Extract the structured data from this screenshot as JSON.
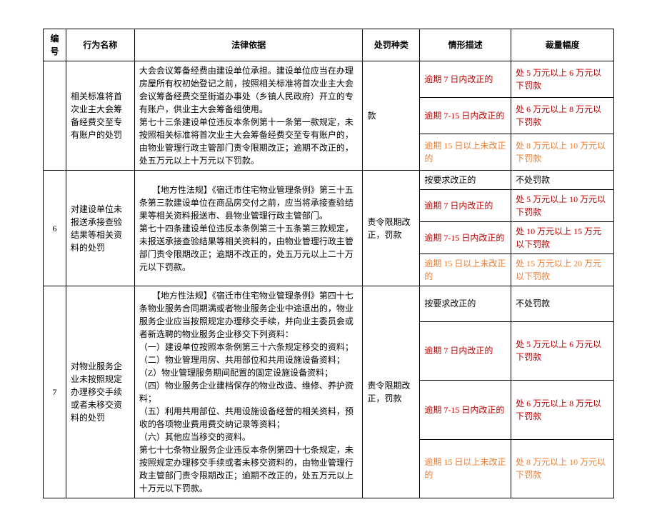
{
  "headers": {
    "num": "编号",
    "behavior": "行为名称",
    "legal": "法律依据",
    "penalty_type": "处罚种类",
    "situation": "情形描述",
    "range": "裁量幅度"
  },
  "rows": [
    {
      "num": "",
      "behavior": "相关标准将首次业主大会筹备经费交至专有账户的处罚",
      "legal": "大会会议筹备经费由建设单位承担。建设单位应当在办理房屋所有权初始登记之前，按照相关标准将首次业主大会会议筹备经费交至街道办事处（乡镇人民政府）开立的专有账户，供业主大会筹备组使用。\n第七十三条建设单位违反本条例第十一条第一款规定，未按照相关标准将首次业主大会筹备经费交至专有账户的，由物业管理行政主管部门责令限期改正；逾期不改正的，处五万元以上十万元以下罚款。",
      "penalty_type": "款",
      "situations": [
        {
          "desc": "逾期 7 日内改正的",
          "range": "处 5 万元以上 6 万元以下罚款",
          "style": "red"
        },
        {
          "desc": "逾期 7-15 日内改正的",
          "range": "处 6 万元以上 8 万元以下罚款",
          "style": "red"
        },
        {
          "desc": "逾期 15 日以上未改正的",
          "range": "处 8 万元以上 10 万元以下罚款",
          "style": "orange"
        }
      ]
    },
    {
      "num": "6",
      "behavior": "对建设单位未报送承接查验结果等相关资料的处罚",
      "legal": "　　【地方性法规】《宿迁市住宅物业管理条例》第三十五条第三款建设单位在商品房交付之前，应当将承接查验结果等相关资料报送市、县物业管理行政主管部门。\n第七十四条建设单位违反本条例第三十五条第三款规定，未报送承接查验结果等相关资料的，由物业管理行政主管部门责令限期改正；逾期不改正的，处五万元以上二十万元以下罚款。",
      "penalty_type": "责令限期改正，罚款",
      "situations": [
        {
          "desc": "按要求改正的",
          "range": "不处罚款",
          "style": ""
        },
        {
          "desc": "逾期 7 日内改正的",
          "range": "处 5 万元以上 10 万元以下罚款",
          "style": "red"
        },
        {
          "desc": "逾期 7-15 日内改正的",
          "range": "处 10 万元以上 15 万元以下罚款",
          "style": "red"
        },
        {
          "desc": "逾期 15 日以上未改正的",
          "range": "处 15 万元以上 20 万元以下罚款",
          "style": "orange"
        }
      ]
    },
    {
      "num": "7",
      "behavior": "对物业服务企业未按照规定办理移交手续或者未移交资料的处罚",
      "legal": "　　【地方性法规】《宿迁市住宅物业管理条例》第四十七条物业服务合同期满或者物业服务企业中途退出的，物业服务企业应当按照规定办理移交手续，并向业主委员会或者新选聘的物业服务企业移交下列资料：\n（一）建设单位按照本条例第三十六条规定移交的资料；\n（二）物业管理用房、共用部位和共用设施设备资料；\n（Z）物业管理服务期间配置的固定设施设备资料；\n（四）物业服务企业建档保存的物业改造、维修、养护资料；\n（五）利用共用部位、共用设施设备经营的相关资料，预收的各项物业费用费交纳记录等资料；\n（六）其他应当移交的资料。\n第七十七条物业服务企业违反本条例第四十七条规定，未按照规定办理移交手续或者未移交资料的，由物业管理行政主管部门责令限期改正；逾期不改正的，处五万元以上十万元以下罚款。",
      "penalty_type": "责令限期改正，罚款",
      "situations": [
        {
          "desc": "按要求改正的",
          "range": "不处罚款",
          "style": ""
        },
        {
          "desc": "逾期 7 日内改正的",
          "range": "处 5 万元以上 6 万元以下罚款",
          "style": "red"
        },
        {
          "desc": "逾期 7-15 日内改正的",
          "range": "处 6 万元以上 8 万元以下罚款",
          "style": "red"
        },
        {
          "desc": "逾期 15 日以上未改正的",
          "range": "处 8 万元以上 10 万元以下罚款",
          "style": "orange"
        }
      ]
    }
  ]
}
